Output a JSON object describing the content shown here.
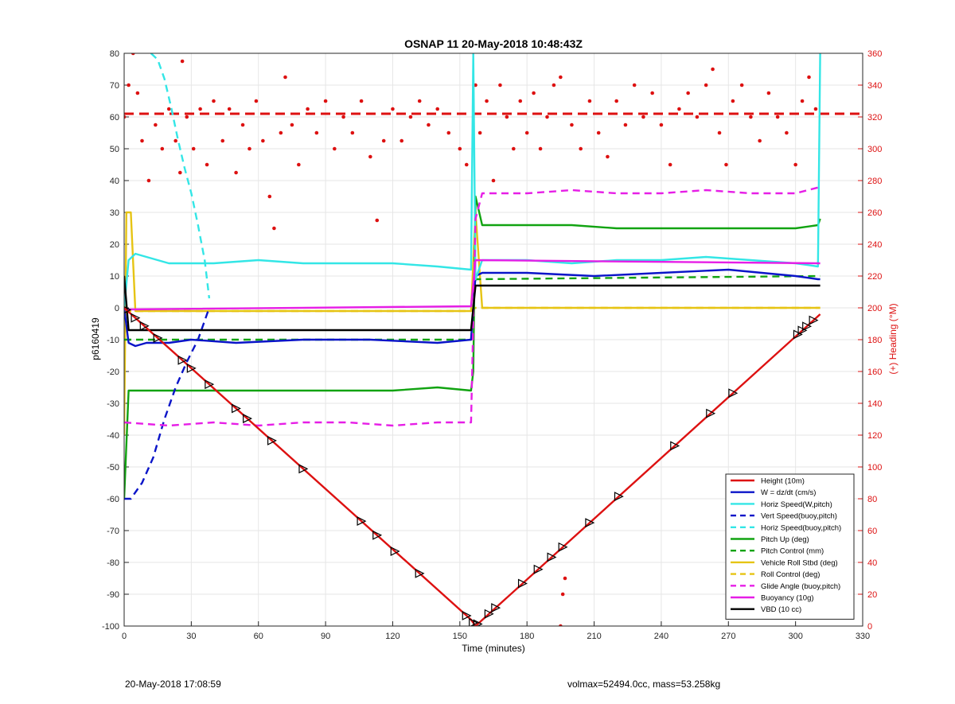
{
  "chart_data": {
    "type": "line",
    "title": "OSNAP 11 20-May-2018 10:48:43Z",
    "xlabel": "Time (minutes)",
    "ylabel": "p6160419",
    "y2label": "(+) Heading (°M)",
    "xlim": [
      0,
      330
    ],
    "ylim": [
      -100,
      80
    ],
    "y2lim": [
      0,
      360
    ],
    "xticks": [
      0,
      30,
      60,
      90,
      120,
      150,
      180,
      210,
      240,
      270,
      300,
      330
    ],
    "yticks": [
      -100,
      -90,
      -80,
      -70,
      -60,
      -50,
      -40,
      -30,
      -20,
      -10,
      0,
      10,
      20,
      30,
      40,
      50,
      60,
      70,
      80
    ],
    "y2ticks": [
      0,
      20,
      40,
      60,
      80,
      100,
      120,
      140,
      160,
      180,
      200,
      220,
      240,
      260,
      280,
      300,
      320,
      340,
      360
    ],
    "grid": true,
    "legend_position": "bottom-right",
    "colors": {
      "red": "#dd1111",
      "blue": "#0a14c8",
      "cyan": "#33e6e6",
      "green": "#11a311",
      "yellow": "#e6c414",
      "magenta": "#e61ee6",
      "black": "#000000"
    },
    "series": [
      {
        "name": "Height (10m)",
        "color": "red",
        "dash": "solid",
        "x": [
          0,
          155,
          157,
          311
        ],
        "y": [
          0,
          -98,
          -100,
          -2
        ]
      },
      {
        "name": "W = dz/dt (cm/s)",
        "color": "blue",
        "dash": "solid",
        "x": [
          0,
          2,
          5,
          10,
          20,
          30,
          50,
          80,
          110,
          140,
          155,
          157,
          160,
          180,
          210,
          240,
          270,
          300,
          310,
          311
        ],
        "y": [
          0,
          -11,
          -12,
          -11,
          -11,
          -10,
          -11,
          -10,
          -10,
          -11,
          -10,
          10,
          11,
          11,
          10,
          11,
          12,
          10,
          9,
          9
        ]
      },
      {
        "name": "Horiz Speed(W,pitch)",
        "color": "cyan",
        "dash": "solid",
        "x": [
          0,
          2,
          5,
          10,
          20,
          40,
          60,
          80,
          100,
          120,
          140,
          155,
          156,
          157,
          160,
          180,
          200,
          220,
          240,
          260,
          280,
          300,
          310,
          311
        ],
        "y": [
          0,
          15,
          17,
          16,
          14,
          14,
          15,
          14,
          14,
          14,
          13,
          12,
          80,
          9,
          15,
          15,
          14,
          15,
          15,
          16,
          15,
          14,
          13,
          80
        ]
      },
      {
        "name": "Vert Speed(buoy,pitch)",
        "color": "blue",
        "dash": "dash",
        "x": [
          0,
          3,
          8,
          13,
          18,
          23,
          28,
          33,
          38
        ],
        "y": [
          -60,
          -60,
          -55,
          -47,
          -35,
          -25,
          -17,
          -10,
          0
        ]
      },
      {
        "name": "Horiz Speed(buoy,pitch)",
        "color": "cyan",
        "dash": "dash",
        "x": [
          12,
          15,
          18,
          21,
          24,
          27,
          30,
          33,
          36,
          38
        ],
        "y": [
          80,
          78,
          72,
          63,
          53,
          44,
          36,
          26,
          15,
          3
        ]
      },
      {
        "name": "Pitch Up (deg)",
        "color": "green",
        "dash": "solid",
        "x": [
          0,
          2,
          5,
          20,
          40,
          60,
          80,
          100,
          120,
          140,
          155,
          156,
          157,
          160,
          180,
          200,
          220,
          240,
          260,
          280,
          300,
          310,
          311
        ],
        "y": [
          -60,
          -26,
          -26,
          -26,
          -26,
          -26,
          -26,
          -26,
          -26,
          -25,
          -26,
          -20,
          35,
          26,
          26,
          26,
          25,
          25,
          25,
          25,
          25,
          26,
          28
        ]
      },
      {
        "name": "Pitch Control (mm)",
        "color": "green",
        "dash": "dash",
        "x": [
          0,
          155,
          157,
          311
        ],
        "y": [
          -10,
          -10,
          9,
          10
        ]
      },
      {
        "name": "Vehicle Roll Stbd (deg)",
        "color": "yellow",
        "dash": "solid",
        "x": [
          0,
          1,
          3,
          5,
          10,
          30,
          60,
          90,
          120,
          155,
          157,
          160,
          180,
          210,
          240,
          270,
          300,
          311
        ],
        "y": [
          -40,
          30,
          30,
          -1,
          -1,
          -1,
          -1,
          -1,
          -1,
          -1,
          30,
          0,
          0,
          0,
          0,
          0,
          0,
          0
        ]
      },
      {
        "name": "Roll Control (deg)",
        "color": "yellow",
        "dash": "dash",
        "x": [
          0,
          155,
          157,
          311
        ],
        "y": [
          -1,
          -1,
          0,
          0
        ]
      },
      {
        "name": "Glide Angle (buoy,pitch)",
        "color": "magenta",
        "dash": "dash",
        "x": [
          0,
          20,
          40,
          60,
          80,
          100,
          120,
          140,
          155,
          157,
          160,
          180,
          200,
          220,
          240,
          260,
          280,
          300,
          311
        ],
        "y": [
          -36,
          -37,
          -36,
          -37,
          -36,
          -36,
          -37,
          -36,
          -36,
          28,
          36,
          36,
          37,
          36,
          36,
          37,
          36,
          36,
          38
        ]
      },
      {
        "name": "Buoyancy (10g)",
        "color": "magenta",
        "dash": "solid",
        "x": [
          0,
          155,
          157,
          311
        ],
        "y": [
          -0.5,
          0.5,
          15,
          14
        ]
      },
      {
        "name": "VBD (10 cc)",
        "color": "black",
        "dash": "solid",
        "x": [
          0,
          2,
          155,
          157,
          311
        ],
        "y": [
          10,
          -7,
          -7,
          7,
          7
        ]
      }
    ],
    "heading_points": [
      {
        "x": 0,
        "y": 320
      },
      {
        "x": 2,
        "y": 340
      },
      {
        "x": 4,
        "y": 360
      },
      {
        "x": 6,
        "y": 335
      },
      {
        "x": 8,
        "y": 305
      },
      {
        "x": 11,
        "y": 280
      },
      {
        "x": 14,
        "y": 315
      },
      {
        "x": 17,
        "y": 300
      },
      {
        "x": 20,
        "y": 325
      },
      {
        "x": 23,
        "y": 305
      },
      {
        "x": 25,
        "y": 285
      },
      {
        "x": 26,
        "y": 355
      },
      {
        "x": 28,
        "y": 320
      },
      {
        "x": 31,
        "y": 300
      },
      {
        "x": 34,
        "y": 325
      },
      {
        "x": 37,
        "y": 290
      },
      {
        "x": 40,
        "y": 330
      },
      {
        "x": 44,
        "y": 305
      },
      {
        "x": 47,
        "y": 325
      },
      {
        "x": 50,
        "y": 285
      },
      {
        "x": 53,
        "y": 315
      },
      {
        "x": 56,
        "y": 300
      },
      {
        "x": 59,
        "y": 330
      },
      {
        "x": 62,
        "y": 305
      },
      {
        "x": 65,
        "y": 270
      },
      {
        "x": 67,
        "y": 250
      },
      {
        "x": 70,
        "y": 310
      },
      {
        "x": 72,
        "y": 345
      },
      {
        "x": 75,
        "y": 315
      },
      {
        "x": 78,
        "y": 290
      },
      {
        "x": 82,
        "y": 325
      },
      {
        "x": 86,
        "y": 310
      },
      {
        "x": 90,
        "y": 330
      },
      {
        "x": 94,
        "y": 300
      },
      {
        "x": 98,
        "y": 320
      },
      {
        "x": 102,
        "y": 310
      },
      {
        "x": 106,
        "y": 330
      },
      {
        "x": 110,
        "y": 295
      },
      {
        "x": 113,
        "y": 255
      },
      {
        "x": 116,
        "y": 305
      },
      {
        "x": 120,
        "y": 325
      },
      {
        "x": 124,
        "y": 305
      },
      {
        "x": 128,
        "y": 320
      },
      {
        "x": 132,
        "y": 330
      },
      {
        "x": 136,
        "y": 315
      },
      {
        "x": 140,
        "y": 325
      },
      {
        "x": 145,
        "y": 310
      },
      {
        "x": 150,
        "y": 300
      },
      {
        "x": 153,
        "y": 290
      },
      {
        "x": 157,
        "y": 340
      },
      {
        "x": 159,
        "y": 310
      },
      {
        "x": 162,
        "y": 330
      },
      {
        "x": 165,
        "y": 280
      },
      {
        "x": 168,
        "y": 340
      },
      {
        "x": 171,
        "y": 320
      },
      {
        "x": 174,
        "y": 300
      },
      {
        "x": 177,
        "y": 330
      },
      {
        "x": 180,
        "y": 310
      },
      {
        "x": 183,
        "y": 335
      },
      {
        "x": 186,
        "y": 300
      },
      {
        "x": 189,
        "y": 320
      },
      {
        "x": 192,
        "y": 340
      },
      {
        "x": 195,
        "y": 345
      },
      {
        "x": 196,
        "y": 20
      },
      {
        "x": 197,
        "y": 30
      },
      {
        "x": 195,
        "y": 0
      },
      {
        "x": 200,
        "y": 315
      },
      {
        "x": 204,
        "y": 300
      },
      {
        "x": 208,
        "y": 330
      },
      {
        "x": 212,
        "y": 310
      },
      {
        "x": 216,
        "y": 295
      },
      {
        "x": 220,
        "y": 330
      },
      {
        "x": 224,
        "y": 315
      },
      {
        "x": 228,
        "y": 340
      },
      {
        "x": 232,
        "y": 320
      },
      {
        "x": 236,
        "y": 335
      },
      {
        "x": 240,
        "y": 315
      },
      {
        "x": 244,
        "y": 290
      },
      {
        "x": 248,
        "y": 325
      },
      {
        "x": 252,
        "y": 335
      },
      {
        "x": 256,
        "y": 320
      },
      {
        "x": 260,
        "y": 340
      },
      {
        "x": 263,
        "y": 350
      },
      {
        "x": 266,
        "y": 310
      },
      {
        "x": 269,
        "y": 290
      },
      {
        "x": 272,
        "y": 330
      },
      {
        "x": 276,
        "y": 340
      },
      {
        "x": 280,
        "y": 320
      },
      {
        "x": 284,
        "y": 305
      },
      {
        "x": 288,
        "y": 335
      },
      {
        "x": 292,
        "y": 320
      },
      {
        "x": 296,
        "y": 310
      },
      {
        "x": 300,
        "y": 290
      },
      {
        "x": 303,
        "y": 330
      },
      {
        "x": 306,
        "y": 345
      },
      {
        "x": 309,
        "y": 325
      }
    ],
    "heading_mean_line": {
      "y": 322
    },
    "height_markers_x": [
      1,
      5,
      9,
      15,
      26,
      30,
      38,
      50,
      55,
      66,
      80,
      106,
      113,
      121,
      132,
      153,
      156,
      158,
      163,
      166,
      178,
      185,
      191,
      196,
      208,
      221,
      246,
      262,
      272,
      301,
      303,
      305,
      308
    ]
  },
  "footer": {
    "left": "20-May-2018 17:08:59",
    "right": "volmax=52494.0cc, mass=53.258kg"
  }
}
